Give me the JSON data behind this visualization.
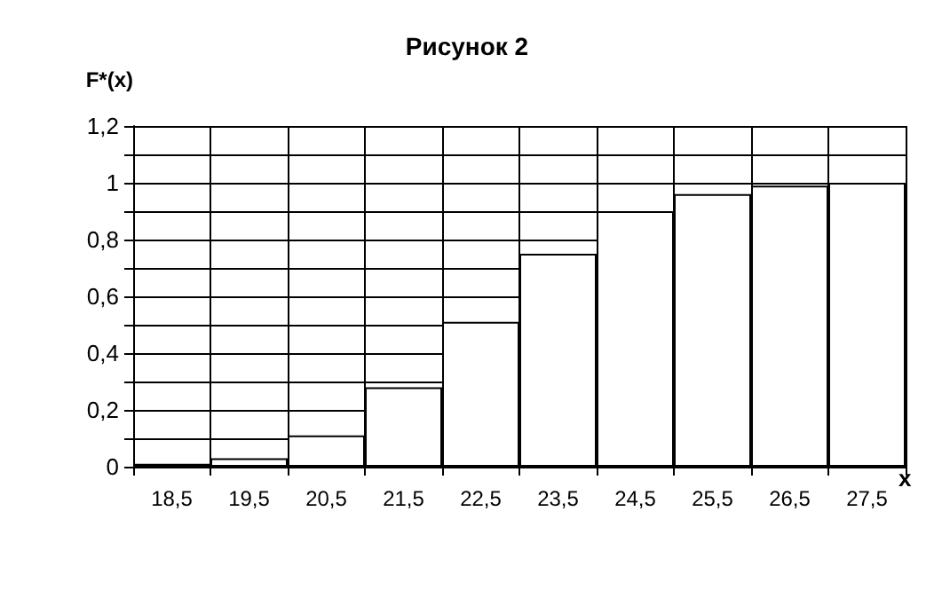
{
  "chart_data": {
    "type": "bar",
    "title": "Рисунок 2",
    "xlabel": "x",
    "ylabel": "F*(x)",
    "categories": [
      "18,5",
      "19,5",
      "20,5",
      "21,5",
      "22,5",
      "23,5",
      "24,5",
      "25,5",
      "26,5",
      "27,5"
    ],
    "values": [
      0.01,
      0.03,
      0.11,
      0.28,
      0.51,
      0.75,
      0.9,
      0.96,
      0.99,
      1.0
    ],
    "color": "#ffffff",
    "ylim": [
      0,
      1.2
    ],
    "yticks": [
      0,
      {
        "value": 0.1,
        "label": null
      },
      {
        "value": 0.2,
        "label": "0,2"
      },
      {
        "value": 0.3,
        "label": null
      },
      {
        "value": 0.4,
        "label": "0,4"
      },
      {
        "value": 0.5,
        "label": null
      },
      {
        "value": 0.6,
        "label": "0,6"
      },
      {
        "value": 0.7,
        "label": null
      },
      {
        "value": 0.8,
        "label": "0,8"
      },
      {
        "value": 0.9,
        "label": null
      },
      1,
      {
        "value": 1.1,
        "label": null
      },
      {
        "value": 1.2,
        "label": "1,2"
      }
    ],
    "grid": true
  }
}
